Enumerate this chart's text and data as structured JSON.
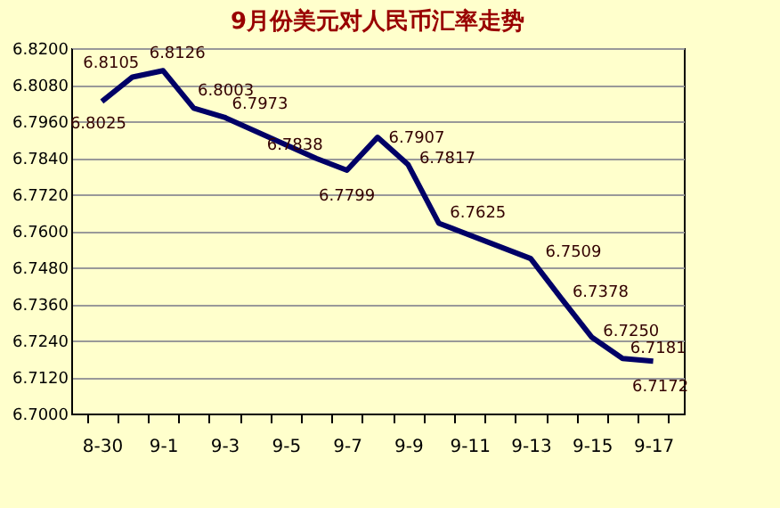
{
  "chart_data": {
    "type": "line",
    "title": "9月份美元对人民币汇率走势",
    "categories": [
      "8-30",
      null,
      "9-1",
      null,
      "9-3",
      null,
      "9-5",
      null,
      "9-7",
      null,
      "9-9",
      null,
      "9-11",
      null,
      "9-13",
      null,
      "9-15",
      null,
      "9-17"
    ],
    "series": [
      {
        "color": "#000066",
        "values": [
          6.8025,
          6.8105,
          6.8126,
          6.8003,
          6.7973,
          null,
          null,
          6.7838,
          6.7799,
          6.7907,
          6.7817,
          6.7625,
          null,
          null,
          6.7509,
          6.7378,
          6.725,
          6.7181,
          6.7172
        ],
        "value_labels": [
          "6.8025",
          "6.8105",
          "6.8126",
          "6.8003",
          "6.7973",
          null,
          null,
          "6.7838",
          "6.7799",
          "6.7907",
          "6.7817",
          "6.7625",
          null,
          null,
          "6.7509",
          "6.7378",
          "6.7250",
          "6.7181",
          "6.7172"
        ]
      }
    ],
    "ylim": [
      6.7,
      6.82
    ],
    "yticks": [
      {
        "value": 6.7,
        "label": "6.7000"
      },
      {
        "value": 6.712,
        "label": "6.7120"
      },
      {
        "value": 6.724,
        "label": "6.7240"
      },
      {
        "value": 6.736,
        "label": "6.7360"
      },
      {
        "value": 6.748,
        "label": "6.7480"
      },
      {
        "value": 6.76,
        "label": "6.7600"
      },
      {
        "value": 6.772,
        "label": "6.7720"
      },
      {
        "value": 6.784,
        "label": "6.7840"
      },
      {
        "value": 6.796,
        "label": "6.7960"
      },
      {
        "value": 6.808,
        "label": "6.8080"
      },
      {
        "value": 6.82,
        "label": "6.8200"
      }
    ],
    "grid": "y",
    "marker": "none",
    "line_style": "solid"
  }
}
